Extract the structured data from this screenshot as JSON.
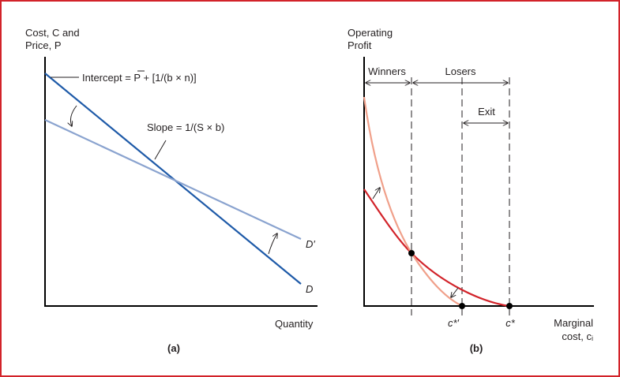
{
  "panel_a": {
    "y_label_line1": "Cost, C and",
    "y_label_line2": "Price, P",
    "x_label": "Quantity",
    "caption": "(a)",
    "intercept_label": "Intercept = P + [1/(b × n)]",
    "slope_label": "Slope = 1/(S × b)",
    "curve_d": "D",
    "curve_d_prime": "D′",
    "colors": {
      "steep_line": "#1e5aa8",
      "flat_line": "#8aa3cf"
    }
  },
  "panel_b": {
    "y_label_line1": "Operating",
    "y_label_line2": "Profit",
    "x_label_line1": "Marginal",
    "x_label_line2": "cost, cᵢ",
    "caption": "(b)",
    "winners_label": "Winners",
    "losers_label": "Losers",
    "exit_label": "Exit",
    "c_star_prime": "c*′",
    "c_star": "c*",
    "colors": {
      "original_curve": "#d2232a",
      "new_curve": "#f0a08a"
    }
  }
}
